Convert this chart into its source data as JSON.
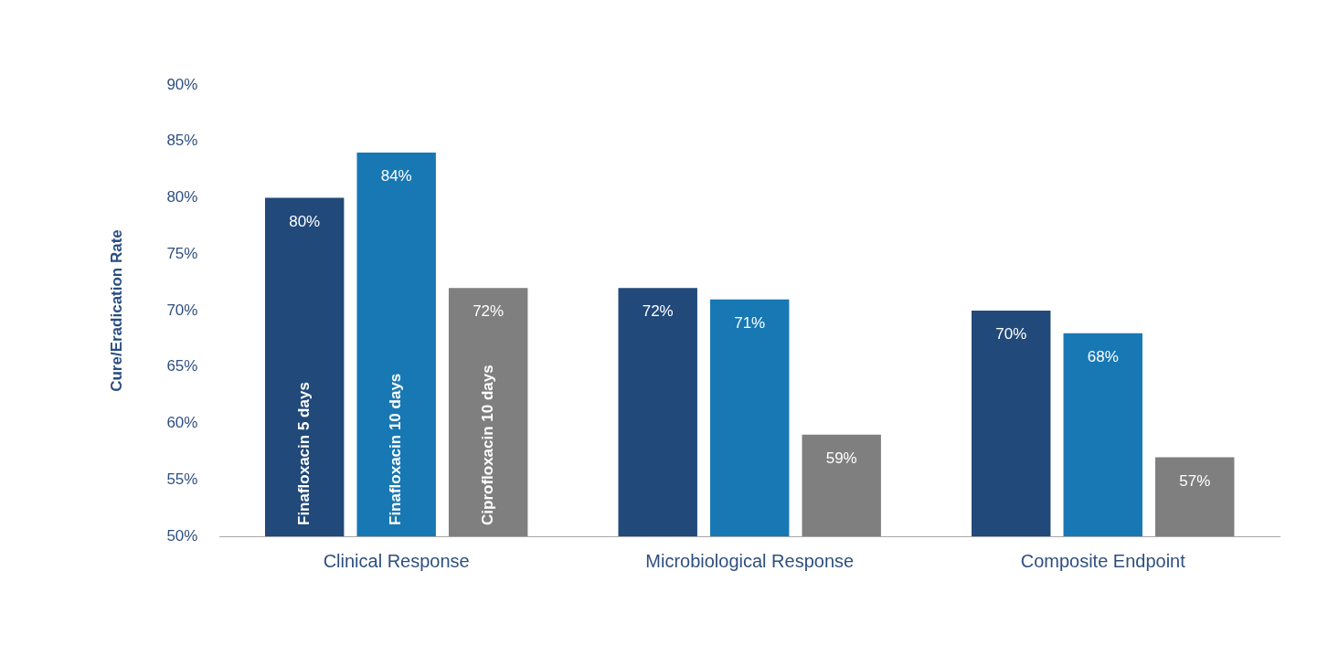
{
  "chart_data": {
    "type": "bar",
    "ylabel": "Cure/Eradication Rate",
    "categories": [
      "Clinical Response",
      "Microbiological Response",
      "Composite Endpoint"
    ],
    "series": [
      {
        "name": "Finafloxacin 5 days",
        "color": "#21497a",
        "values": [
          80,
          72,
          70
        ],
        "value_labels": [
          "80%",
          "72%",
          "70%"
        ]
      },
      {
        "name": "Finafloxacin 10 days",
        "color": "#1878b4",
        "values": [
          84,
          71,
          68
        ],
        "value_labels": [
          "84%",
          "71%",
          "68%"
        ]
      },
      {
        "name": "Ciprofloxacin 10 days",
        "color": "#7f7f7f",
        "values": [
          72,
          59,
          57
        ],
        "value_labels": [
          "72%",
          "59%",
          "57%"
        ]
      }
    ],
    "ylim": [
      50,
      90
    ],
    "yticks": [
      {
        "value": 50,
        "label": "50%"
      },
      {
        "value": 55,
        "label": "55%"
      },
      {
        "value": 60,
        "label": "60%"
      },
      {
        "value": 65,
        "label": "65%"
      },
      {
        "value": 70,
        "label": "70%"
      },
      {
        "value": 75,
        "label": "75%"
      },
      {
        "value": 80,
        "label": "80%"
      },
      {
        "value": 85,
        "label": "85%"
      },
      {
        "value": 90,
        "label": "90%"
      }
    ],
    "grid": false,
    "legend": false
  }
}
